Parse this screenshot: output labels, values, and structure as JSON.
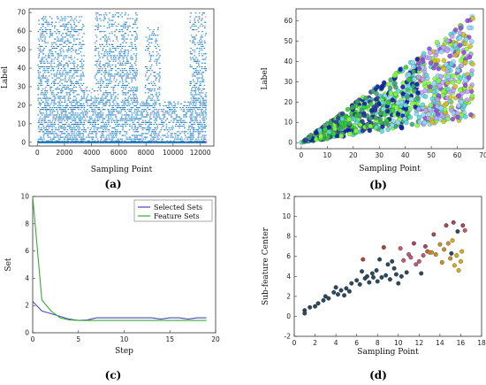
{
  "chart_data": [
    {
      "id": "a",
      "type": "scatter",
      "caption": "(a)",
      "xlabel": "Sampling Point",
      "ylabel": "Label",
      "xlim": [
        -600,
        13000
      ],
      "ylim": [
        -2,
        72
      ],
      "xticks": [
        0,
        2000,
        4000,
        6000,
        8000,
        10000,
        12000
      ],
      "yticks": [
        0,
        10,
        20,
        30,
        40,
        50,
        60,
        70
      ],
      "grid": false,
      "colors": [
        "#1f77b4",
        "#2a8fd6",
        "#e377c2"
      ],
      "bands": [
        {
          "x": [
            0,
            3400
          ],
          "y": [
            0,
            68
          ],
          "density": 0.7
        },
        {
          "x": [
            3400,
            4200
          ],
          "y": [
            0,
            30
          ],
          "density": 0.5
        },
        {
          "x": [
            4200,
            7300
          ],
          "y": [
            0,
            70
          ],
          "density": 0.65
        },
        {
          "x": [
            7300,
            7900
          ],
          "y": [
            0,
            22
          ],
          "density": 0.5
        },
        {
          "x": [
            7900,
            9000
          ],
          "y": [
            0,
            62
          ],
          "density": 0.55
        },
        {
          "x": [
            9000,
            11200
          ],
          "y": [
            0,
            22
          ],
          "density": 0.45
        },
        {
          "x": [
            11200,
            12400
          ],
          "y": [
            0,
            70
          ],
          "density": 0.7
        }
      ]
    },
    {
      "id": "b",
      "type": "scatter",
      "caption": "(b)",
      "xlabel": "Sampling Point",
      "ylabel": "Label",
      "xlim": [
        -2,
        70
      ],
      "ylim": [
        -3,
        66
      ],
      "xticks": [
        0,
        10,
        20,
        30,
        40,
        50,
        60,
        70
      ],
      "yticks": [
        0,
        10,
        20,
        30,
        40,
        50,
        60
      ],
      "grid": false,
      "colors": [
        "#0a1fa8",
        "#2ed12e",
        "#7fff3a",
        "#55d8d8",
        "#8fd8ff",
        "#d4c21a",
        "#8a4fd9",
        "#c0a0ff",
        "#2a3a9a",
        "#3fa36a"
      ],
      "cloud": {
        "x": [
          0,
          66
        ],
        "lower_slope": 0.18,
        "upper_slope": 0.95,
        "upper_cap": 63
      }
    },
    {
      "id": "c",
      "type": "line",
      "caption": "(c)",
      "xlabel": "Step",
      "ylabel": "Set",
      "xlim": [
        0,
        20
      ],
      "ylim": [
        0,
        10
      ],
      "xticks": [
        0,
        5,
        10,
        15,
        20
      ],
      "yticks": [
        0,
        2,
        4,
        6,
        8,
        10
      ],
      "legend_position": "top-right",
      "series": [
        {
          "name": "Selected Sets",
          "color": "#4a4ab8",
          "x": [
            0,
            1,
            2,
            3,
            4,
            5,
            6,
            7,
            8,
            9,
            10,
            11,
            12,
            13,
            14,
            15,
            16,
            17,
            18,
            19
          ],
          "values": [
            2.3,
            1.6,
            1.4,
            1.2,
            1.0,
            0.9,
            0.95,
            1.1,
            1.1,
            1.1,
            1.1,
            1.1,
            1.1,
            1.1,
            1.0,
            1.1,
            1.1,
            1.0,
            1.1,
            1.1
          ]
        },
        {
          "name": "Feature Sets",
          "color": "#3aa83a",
          "x": [
            0,
            1,
            2,
            3,
            4,
            5,
            6,
            7,
            8,
            9,
            10,
            11,
            12,
            13,
            14,
            15,
            16,
            17,
            18,
            19
          ],
          "values": [
            10,
            2.4,
            1.6,
            1.1,
            0.95,
            0.9,
            0.9,
            0.9,
            0.9,
            0.9,
            0.9,
            0.9,
            0.9,
            0.9,
            0.9,
            0.9,
            0.9,
            0.9,
            0.9,
            0.9
          ]
        }
      ]
    },
    {
      "id": "d",
      "type": "scatter",
      "caption": "(d)",
      "xlabel": "Sampling Point",
      "ylabel": "Sub-feature Center",
      "xlim": [
        0,
        18
      ],
      "ylim": [
        -2,
        12
      ],
      "xticks": [
        0,
        2,
        4,
        6,
        8,
        10,
        12,
        14,
        16,
        18
      ],
      "yticks": [
        -2,
        0,
        2,
        4,
        6,
        8,
        10,
        12
      ],
      "grid": false,
      "points": [
        {
          "x": 1.0,
          "y": 0.6,
          "c": "#2c4a5c"
        },
        {
          "x": 1.0,
          "y": 0.3,
          "c": "#2c4a5c"
        },
        {
          "x": 1.5,
          "y": 0.9,
          "c": "#2c4a5c"
        },
        {
          "x": 2.0,
          "y": 1.0,
          "c": "#2c4a5c"
        },
        {
          "x": 2.3,
          "y": 1.3,
          "c": "#2c4a5c"
        },
        {
          "x": 2.8,
          "y": 1.6,
          "c": "#2c4a5c"
        },
        {
          "x": 3.0,
          "y": 2.0,
          "c": "#2c4a5c"
        },
        {
          "x": 3.3,
          "y": 1.8,
          "c": "#2c4a5c"
        },
        {
          "x": 3.8,
          "y": 2.4,
          "c": "#2c4a5c"
        },
        {
          "x": 4.0,
          "y": 2.9,
          "c": "#2c4a5c"
        },
        {
          "x": 4.2,
          "y": 2.2,
          "c": "#2c4a5c"
        },
        {
          "x": 4.5,
          "y": 2.6,
          "c": "#2c4a5c"
        },
        {
          "x": 4.8,
          "y": 2.1,
          "c": "#2c4a5c"
        },
        {
          "x": 5.0,
          "y": 2.8,
          "c": "#2c4a5c"
        },
        {
          "x": 5.3,
          "y": 2.5,
          "c": "#2c4a5c"
        },
        {
          "x": 5.5,
          "y": 3.3,
          "c": "#2c4a5c"
        },
        {
          "x": 6.0,
          "y": 3.6,
          "c": "#2c4a5c"
        },
        {
          "x": 6.3,
          "y": 3.2,
          "c": "#2c4a5c"
        },
        {
          "x": 6.5,
          "y": 4.5,
          "c": "#2c4a5c"
        },
        {
          "x": 6.6,
          "y": 5.7,
          "c": "#a34a3a"
        },
        {
          "x": 6.8,
          "y": 3.8,
          "c": "#2c4a5c"
        },
        {
          "x": 7.0,
          "y": 4.0,
          "c": "#2c4a5c"
        },
        {
          "x": 7.2,
          "y": 3.4,
          "c": "#2c4a5c"
        },
        {
          "x": 7.5,
          "y": 4.3,
          "c": "#2c4a5c"
        },
        {
          "x": 7.6,
          "y": 3.9,
          "c": "#2c4a5c"
        },
        {
          "x": 7.9,
          "y": 4.6,
          "c": "#2c4a5c"
        },
        {
          "x": 8.0,
          "y": 3.5,
          "c": "#2c4a5c"
        },
        {
          "x": 8.2,
          "y": 5.7,
          "c": "#2c4a5c"
        },
        {
          "x": 8.4,
          "y": 3.9,
          "c": "#2c4a5c"
        },
        {
          "x": 8.6,
          "y": 6.9,
          "c": "#a34a3a"
        },
        {
          "x": 8.8,
          "y": 4.1,
          "c": "#2c4a5c"
        },
        {
          "x": 9.0,
          "y": 5.2,
          "c": "#2c4a5c"
        },
        {
          "x": 9.2,
          "y": 3.7,
          "c": "#2c4a5c"
        },
        {
          "x": 9.4,
          "y": 5.5,
          "c": "#2c4a5c"
        },
        {
          "x": 9.6,
          "y": 4.8,
          "c": "#2c4a5c"
        },
        {
          "x": 9.8,
          "y": 4.2,
          "c": "#2c4a5c"
        },
        {
          "x": 10.0,
          "y": 3.3,
          "c": "#2c4a5c"
        },
        {
          "x": 10.2,
          "y": 6.8,
          "c": "#c45a6a"
        },
        {
          "x": 10.3,
          "y": 4.0,
          "c": "#2c4a5c"
        },
        {
          "x": 10.5,
          "y": 5.6,
          "c": "#c45a6a"
        },
        {
          "x": 10.8,
          "y": 4.4,
          "c": "#2c4a5c"
        },
        {
          "x": 11.0,
          "y": 6.2,
          "c": "#b85a7a"
        },
        {
          "x": 11.2,
          "y": 5.9,
          "c": "#b85a7a"
        },
        {
          "x": 11.5,
          "y": 7.3,
          "c": "#a34a5a"
        },
        {
          "x": 11.7,
          "y": 5.2,
          "c": "#b85a7a"
        },
        {
          "x": 12.0,
          "y": 5.5,
          "c": "#c45a6a"
        },
        {
          "x": 12.2,
          "y": 4.3,
          "c": "#2c4a5c"
        },
        {
          "x": 12.4,
          "y": 6.1,
          "c": "#c45a6a"
        },
        {
          "x": 12.6,
          "y": 7.0,
          "c": "#a34a5a"
        },
        {
          "x": 12.8,
          "y": 6.5,
          "c": "#c45a6a"
        },
        {
          "x": 13.0,
          "y": 6.4,
          "c": "#c8902a"
        },
        {
          "x": 13.2,
          "y": 6.4,
          "c": "#c8902a"
        },
        {
          "x": 13.4,
          "y": 8.2,
          "c": "#a34a5a"
        },
        {
          "x": 13.6,
          "y": 6.2,
          "c": "#c8902a"
        },
        {
          "x": 14.0,
          "y": 7.2,
          "c": "#c8902a"
        },
        {
          "x": 14.2,
          "y": 5.4,
          "c": "#c8902a"
        },
        {
          "x": 14.4,
          "y": 6.7,
          "c": "#c8902a"
        },
        {
          "x": 14.6,
          "y": 9.1,
          "c": "#a34a5a"
        },
        {
          "x": 14.8,
          "y": 7.3,
          "c": "#c8902a"
        },
        {
          "x": 15.0,
          "y": 5.8,
          "c": "#c8902a"
        },
        {
          "x": 15.1,
          "y": 6.3,
          "c": "#2c4a5c"
        },
        {
          "x": 15.2,
          "y": 7.6,
          "c": "#d4b020"
        },
        {
          "x": 15.3,
          "y": 9.4,
          "c": "#a34a5a"
        },
        {
          "x": 15.4,
          "y": 5.1,
          "c": "#d4b020"
        },
        {
          "x": 15.6,
          "y": 6.1,
          "c": "#d4b020"
        },
        {
          "x": 15.7,
          "y": 8.5,
          "c": "#2c4a5c"
        },
        {
          "x": 15.8,
          "y": 4.6,
          "c": "#d4b020"
        },
        {
          "x": 16.0,
          "y": 5.5,
          "c": "#d4b020"
        },
        {
          "x": 16.1,
          "y": 6.5,
          "c": "#d4b020"
        },
        {
          "x": 16.2,
          "y": 9.1,
          "c": "#a34a5a"
        },
        {
          "x": 16.4,
          "y": 8.6,
          "c": "#c45a6a"
        }
      ]
    }
  ]
}
